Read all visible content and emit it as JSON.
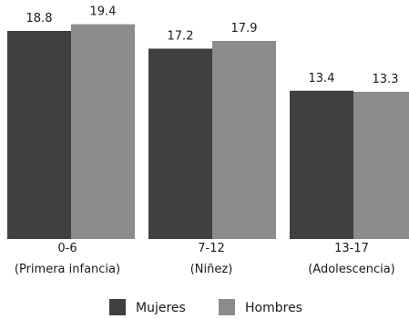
{
  "chart_data": {
    "type": "bar",
    "categories": [
      "0-6",
      "7-12",
      "13-17"
    ],
    "category_sublabels": [
      "(Primera infancia)",
      "(Niñez)",
      "(Adolescencia)"
    ],
    "series": [
      {
        "name": "Mujeres",
        "values": [
          18.8,
          17.2,
          13.4
        ],
        "color": "#404040"
      },
      {
        "name": "Hombres",
        "values": [
          19.4,
          17.9,
          13.3
        ],
        "color": "#8c8c8c"
      }
    ],
    "value_labels": {
      "Mujeres": [
        "18.8",
        "17.2",
        "13.4"
      ],
      "Hombres": [
        "19.4",
        "17.9",
        "13.3"
      ]
    },
    "title": "",
    "xlabel": "",
    "ylabel": "",
    "ylim": [
      0,
      20
    ],
    "grid": false,
    "legend_position": "bottom",
    "show_value_labels": true
  }
}
